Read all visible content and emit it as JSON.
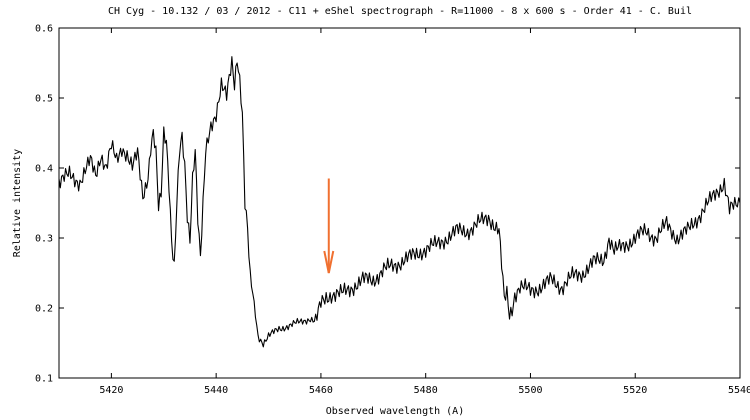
{
  "chart_data": {
    "type": "line",
    "title": "CH Cyg - 10.132 / 03 / 2012 - C11 + eShel spectrograph - R=11000 - 8 x 600 s - Order 41 -  C. Buil",
    "xlabel": "Observed wavelength (A)",
    "ylabel": "Relative intensity",
    "xlim": [
      5410,
      5540
    ],
    "ylim": [
      0.1,
      0.6
    ],
    "xticks": [
      5420,
      5440,
      5460,
      5480,
      5500,
      5520,
      5540
    ],
    "yticks": [
      0.1,
      0.2,
      0.3,
      0.4,
      0.5,
      0.6
    ],
    "grid": false,
    "series": [
      {
        "color": "#000000",
        "x": [
          5410,
          5412,
          5414,
          5416,
          5417,
          5418,
          5419,
          5420,
          5421,
          5422,
          5423,
          5424,
          5425,
          5426,
          5427,
          5427.5,
          5428,
          5428.5,
          5429,
          5429.5,
          5430,
          5430.5,
          5431,
          5431.5,
          5432,
          5432.5,
          5433,
          5433.5,
          5434,
          5434.5,
          5435,
          5435.5,
          5436,
          5436.5,
          5437,
          5438,
          5439,
          5440,
          5441,
          5442,
          5443,
          5443.5,
          5444,
          5444.5,
          5445,
          5445.5,
          5446,
          5446.5,
          5447,
          5448,
          5449,
          5450,
          5452,
          5454,
          5456,
          5458,
          5459,
          5460,
          5461,
          5462,
          5464,
          5466,
          5468,
          5470,
          5472,
          5474,
          5476,
          5478,
          5480,
          5482,
          5484,
          5486,
          5488,
          5490,
          5492,
          5494,
          5495,
          5495.5,
          5496,
          5496.5,
          5497,
          5498,
          5500,
          5502,
          5504,
          5506,
          5508,
          5510,
          5512,
          5514,
          5515,
          5516,
          5518,
          5520,
          5522,
          5524,
          5526,
          5528,
          5530,
          5532,
          5534,
          5536,
          5537,
          5538,
          5540
        ],
        "y": [
          0.38,
          0.39,
          0.38,
          0.41,
          0.39,
          0.42,
          0.4,
          0.43,
          0.41,
          0.43,
          0.42,
          0.4,
          0.42,
          0.36,
          0.39,
          0.43,
          0.45,
          0.42,
          0.34,
          0.36,
          0.45,
          0.44,
          0.38,
          0.3,
          0.26,
          0.35,
          0.42,
          0.44,
          0.4,
          0.33,
          0.3,
          0.39,
          0.43,
          0.33,
          0.27,
          0.42,
          0.46,
          0.48,
          0.52,
          0.5,
          0.55,
          0.52,
          0.56,
          0.53,
          0.48,
          0.35,
          0.31,
          0.24,
          0.22,
          0.16,
          0.15,
          0.16,
          0.17,
          0.175,
          0.18,
          0.185,
          0.18,
          0.205,
          0.215,
          0.22,
          0.22,
          0.23,
          0.24,
          0.24,
          0.255,
          0.26,
          0.27,
          0.275,
          0.285,
          0.29,
          0.3,
          0.31,
          0.31,
          0.32,
          0.33,
          0.31,
          0.21,
          0.22,
          0.19,
          0.2,
          0.22,
          0.23,
          0.225,
          0.23,
          0.24,
          0.23,
          0.245,
          0.25,
          0.265,
          0.27,
          0.3,
          0.28,
          0.29,
          0.3,
          0.31,
          0.3,
          0.32,
          0.3,
          0.31,
          0.33,
          0.35,
          0.37,
          0.38,
          0.34,
          0.35
        ]
      }
    ],
    "annotations": [
      {
        "type": "arrow",
        "color": "#f07030",
        "x": 5461.5,
        "y_from": 0.385,
        "y_to": 0.25
      }
    ]
  }
}
